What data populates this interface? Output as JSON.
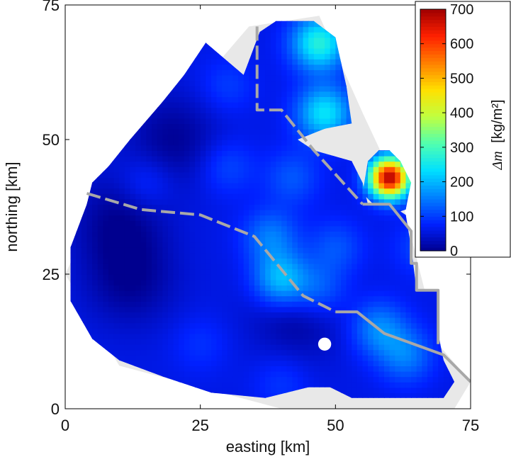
{
  "chart_data": {
    "type": "heatmap",
    "title": "",
    "xlabel": "easting [km]",
    "ylabel": "northing [km]",
    "xlim": [
      0,
      75
    ],
    "ylim": [
      0,
      75
    ],
    "x_ticks": [
      "0",
      "25",
      "50",
      "75"
    ],
    "y_ticks": [
      "0",
      "25",
      "50",
      "75"
    ],
    "grid": false,
    "colorbar": {
      "label_italic": "Δm",
      "label_unit": "[kg/m²]",
      "ticks": [
        "0",
        "100",
        "200",
        "300",
        "400",
        "500",
        "600",
        "700"
      ],
      "range": [
        0,
        700
      ],
      "placement": "top-right",
      "colors": [
        "#00008f",
        "#0020ff",
        "#0080ff",
        "#00e0ff",
        "#50ffb0",
        "#c0ff40",
        "#ffe000",
        "#ff8000",
        "#ff2000",
        "#a00000"
      ]
    },
    "survey_region_color": "#e8e8e8",
    "boundary_line_color": "#a8a8a8",
    "background_level": 60,
    "hotspots": [
      {
        "x": 60,
        "y": 43,
        "value": 690
      },
      {
        "x": 47,
        "y": 68,
        "value": 270
      },
      {
        "x": 48,
        "y": 55,
        "value": 240
      },
      {
        "x": 40,
        "y": 24,
        "value": 220
      },
      {
        "x": 38,
        "y": 32,
        "value": 150
      },
      {
        "x": 58,
        "y": 15,
        "value": 160
      },
      {
        "x": 47,
        "y": 22,
        "value": 140
      },
      {
        "x": 63,
        "y": 10,
        "value": 150
      },
      {
        "x": 30,
        "y": 45,
        "value": 110
      },
      {
        "x": 50,
        "y": 30,
        "value": 120
      },
      {
        "x": 15,
        "y": 42,
        "value": 105
      },
      {
        "x": 25,
        "y": 12,
        "value": 90
      },
      {
        "x": 42,
        "y": 43,
        "value": 120
      },
      {
        "x": 30,
        "y": 60,
        "value": 100
      },
      {
        "x": 40,
        "y": 5,
        "value": 95
      },
      {
        "x": 66,
        "y": 30,
        "value": 110
      }
    ],
    "lows": [
      {
        "x": 12,
        "y": 24,
        "value": 0
      },
      {
        "x": 20,
        "y": 50,
        "value": 10
      },
      {
        "x": 10,
        "y": 35,
        "value": 20
      },
      {
        "x": 43,
        "y": 18,
        "value": 20
      }
    ],
    "survey_region_outline": [
      [
        34,
        71
      ],
      [
        47,
        73
      ],
      [
        55,
        55
      ],
      [
        62,
        40
      ],
      [
        69,
        12
      ],
      [
        75,
        5
      ],
      [
        72,
        0
      ],
      [
        40,
        0
      ],
      [
        10,
        8
      ],
      [
        0,
        25
      ],
      [
        8,
        42
      ],
      [
        22,
        57
      ]
    ],
    "data_region_outline": [
      [
        33,
        62
      ],
      [
        36,
        70
      ],
      [
        39,
        72
      ],
      [
        46,
        72
      ],
      [
        50,
        69
      ],
      [
        52,
        60
      ],
      [
        53,
        53
      ],
      [
        48,
        52
      ],
      [
        43,
        50
      ],
      [
        46,
        48
      ],
      [
        53,
        46
      ],
      [
        55,
        42
      ],
      [
        56,
        38
      ],
      [
        60,
        38
      ],
      [
        63,
        36
      ],
      [
        64,
        30
      ],
      [
        65,
        22
      ],
      [
        69,
        22
      ],
      [
        69,
        14
      ],
      [
        70,
        9
      ],
      [
        72,
        5
      ],
      [
        70,
        2
      ],
      [
        53,
        2
      ],
      [
        49,
        4
      ],
      [
        45,
        4
      ],
      [
        41,
        3
      ],
      [
        37,
        2
      ],
      [
        27,
        3
      ],
      [
        18,
        6
      ],
      [
        10,
        9
      ],
      [
        5,
        13
      ],
      [
        1,
        20
      ],
      [
        1,
        30
      ],
      [
        4,
        38
      ],
      [
        5,
        42
      ],
      [
        8,
        45
      ],
      [
        12,
        50
      ],
      [
        18,
        57
      ],
      [
        22,
        62
      ],
      [
        26,
        68
      ]
    ],
    "ne_patch_outline": [
      [
        55,
        40
      ],
      [
        56,
        46
      ],
      [
        58,
        48
      ],
      [
        60,
        48
      ],
      [
        62,
        46
      ],
      [
        64,
        42
      ],
      [
        63,
        37
      ],
      [
        60,
        36
      ],
      [
        58,
        37
      ]
    ],
    "boundary_lines": [
      {
        "style": "dashed",
        "points": [
          [
            4,
            40
          ],
          [
            14,
            37
          ],
          [
            25,
            36
          ],
          [
            35,
            32
          ],
          [
            44,
            21
          ],
          [
            50,
            18
          ]
        ]
      },
      {
        "style": "solid",
        "points": [
          [
            50,
            18
          ],
          [
            54,
            18
          ],
          [
            59,
            14
          ],
          [
            70,
            10
          ],
          [
            75,
            5
          ]
        ]
      },
      {
        "style": "dashed",
        "points": [
          [
            35.5,
            71
          ],
          [
            35.5,
            55.5
          ],
          [
            40,
            55.5
          ],
          [
            46,
            48
          ],
          [
            55,
            38
          ]
        ]
      },
      {
        "style": "solid",
        "points": [
          [
            55,
            38
          ],
          [
            60,
            38
          ],
          [
            64,
            33
          ],
          [
            64,
            27
          ],
          [
            65,
            27
          ],
          [
            65,
            22
          ],
          [
            69,
            22
          ],
          [
            69,
            12
          ]
        ]
      }
    ],
    "data_hole": {
      "x": 48,
      "y": 12,
      "r": 1.2
    }
  }
}
